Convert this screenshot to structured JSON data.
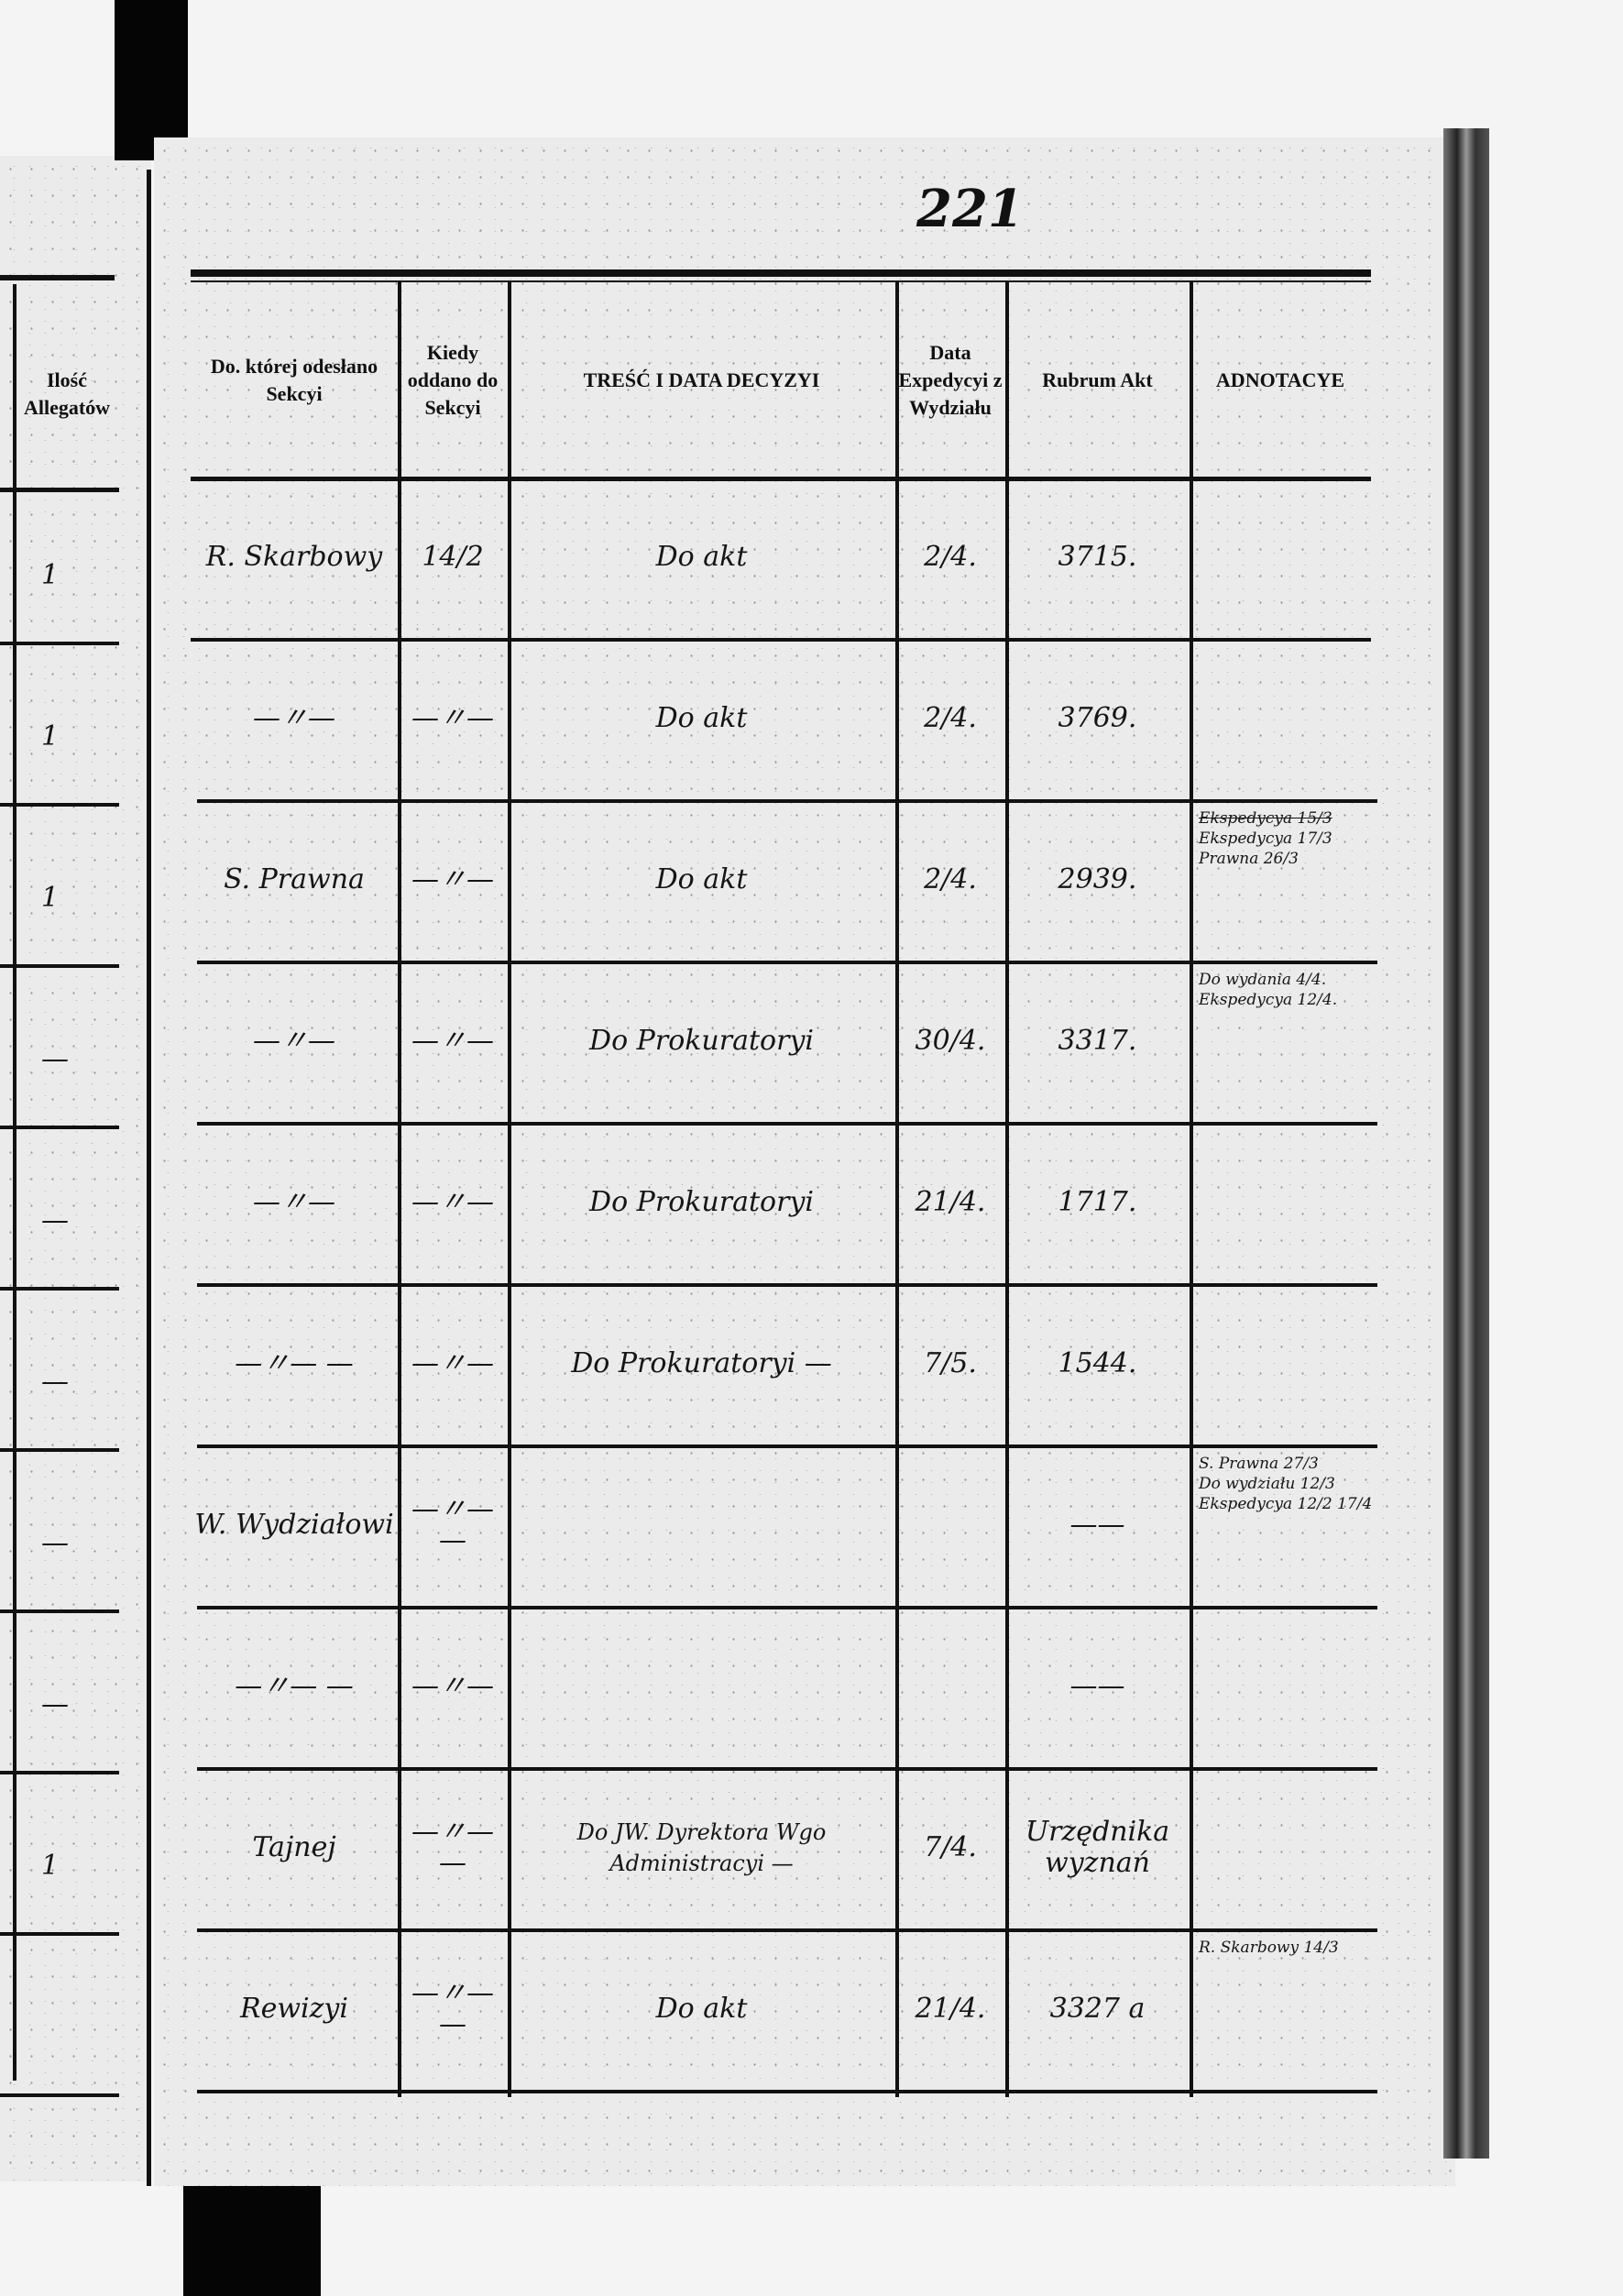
{
  "page_number": "221",
  "left_page": {
    "header": "Ilość Allegatów",
    "values": [
      "1",
      "1",
      "1",
      "—",
      "—",
      "—",
      "—",
      "—",
      "1",
      ""
    ]
  },
  "table": {
    "columns": [
      "Do. której odesłano Sekcyi",
      "Kiedy oddano do Sekcyi",
      "TREŚĆ I DATA DECYZYI",
      "Data Expedycyi z Wydziału",
      "Rubrum Akt",
      "ADNOTACYE"
    ],
    "rows": [
      {
        "sekcya": "R. Skarbowy",
        "kiedy": "14/2",
        "tresc": "Do akt",
        "data": "2/4.",
        "rubrum": "3715.",
        "adnotacye": []
      },
      {
        "sekcya": "—〃—",
        "kiedy": "—〃—",
        "tresc": "Do akt",
        "data": "2/4.",
        "rubrum": "3769.",
        "adnotacye": []
      },
      {
        "sekcya": "S. Prawna",
        "kiedy": "—〃—",
        "tresc": "Do akt",
        "data": "2/4.",
        "rubrum": "2939.",
        "adnotacye": [
          "Ekspedycya 15/3",
          "Ekspedycya 17/3",
          "Prawna 26/3"
        ]
      },
      {
        "sekcya": "—〃—",
        "kiedy": "—〃—",
        "tresc": "Do Prokuratoryi",
        "data": "30/4.",
        "rubrum": "3317.",
        "adnotacye": [
          "Do wydania 4/4.",
          "Ekspedycya 12/4."
        ]
      },
      {
        "sekcya": "—〃—",
        "kiedy": "—〃—",
        "tresc": "Do Prokuratoryi",
        "data": "21/4.",
        "rubrum": "1717.",
        "adnotacye": []
      },
      {
        "sekcya": "—〃— —",
        "kiedy": "—〃—",
        "tresc": "Do Prokuratoryi —",
        "data": "7/5.",
        "rubrum": "1544.",
        "adnotacye": []
      },
      {
        "sekcya": "W. Wydziałowi",
        "kiedy": "—〃— —",
        "tresc": "",
        "data": "",
        "rubrum": "——",
        "adnotacye": [
          "S. Prawna 27/3",
          "Do wydziału 12/3",
          "Ekspedycya 12/2 17/4"
        ]
      },
      {
        "sekcya": "—〃— —",
        "kiedy": "—〃—",
        "tresc": "",
        "data": "",
        "rubrum": "——",
        "adnotacye": []
      },
      {
        "sekcya": "Tajnej",
        "kiedy": "—〃— —",
        "tresc": "Do JW. Dyrektora Wgo Administracyi —",
        "data": "7/4.",
        "rubrum": "Urzędnika wyznań",
        "adnotacye": []
      },
      {
        "sekcya": "Rewizyi",
        "kiedy": "—〃— —",
        "tresc": "Do akt",
        "data": "21/4.",
        "rubrum": "3327 a",
        "adnotacye": [
          "R. Skarbowy 14/3"
        ]
      }
    ]
  }
}
